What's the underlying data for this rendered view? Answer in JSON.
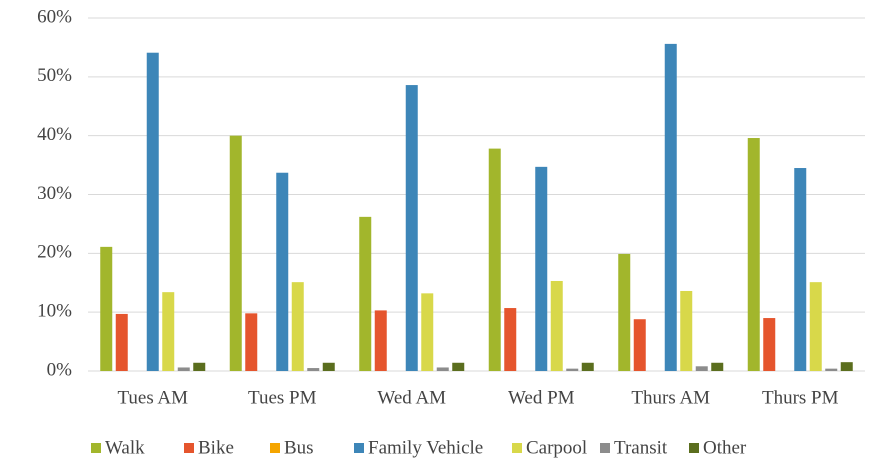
{
  "chart_data": {
    "type": "bar",
    "categories": [
      "Tues AM",
      "Tues PM",
      "Wed AM",
      "Wed PM",
      "Thurs AM",
      "Thurs PM"
    ],
    "series": [
      {
        "name": "Walk",
        "color": "#a2b62c",
        "values": [
          21.1,
          40.0,
          26.2,
          37.8,
          19.9,
          39.6
        ]
      },
      {
        "name": "Bike",
        "color": "#e5552d",
        "values": [
          9.7,
          9.8,
          10.3,
          10.7,
          8.8,
          9.0
        ]
      },
      {
        "name": "Bus",
        "color": "#f5a500",
        "values": [
          0,
          0,
          0,
          0,
          0,
          0
        ]
      },
      {
        "name": "Family Vehicle",
        "color": "#3d86b8",
        "values": [
          54.1,
          33.7,
          48.6,
          34.7,
          55.6,
          34.5
        ]
      },
      {
        "name": "Carpool",
        "color": "#d8d84a",
        "values": [
          13.4,
          15.1,
          13.2,
          15.3,
          13.6,
          15.1
        ]
      },
      {
        "name": "Transit",
        "color": "#8c8c8c",
        "values": [
          0.6,
          0.5,
          0.6,
          0.4,
          0.8,
          0.4
        ]
      },
      {
        "name": "Other",
        "color": "#5b6e1e",
        "values": [
          1.4,
          1.4,
          1.4,
          1.4,
          1.4,
          1.5
        ]
      }
    ],
    "ylim": [
      0,
      60
    ],
    "yticks": [
      {
        "value": 0,
        "label": "0%"
      },
      {
        "value": 10,
        "label": "10%"
      },
      {
        "value": 20,
        "label": "20%"
      },
      {
        "value": 30,
        "label": "30%"
      },
      {
        "value": 40,
        "label": "40%"
      },
      {
        "value": 50,
        "label": "50%"
      },
      {
        "value": 60,
        "label": "60%"
      }
    ],
    "grid": true,
    "legend": "bottom"
  }
}
